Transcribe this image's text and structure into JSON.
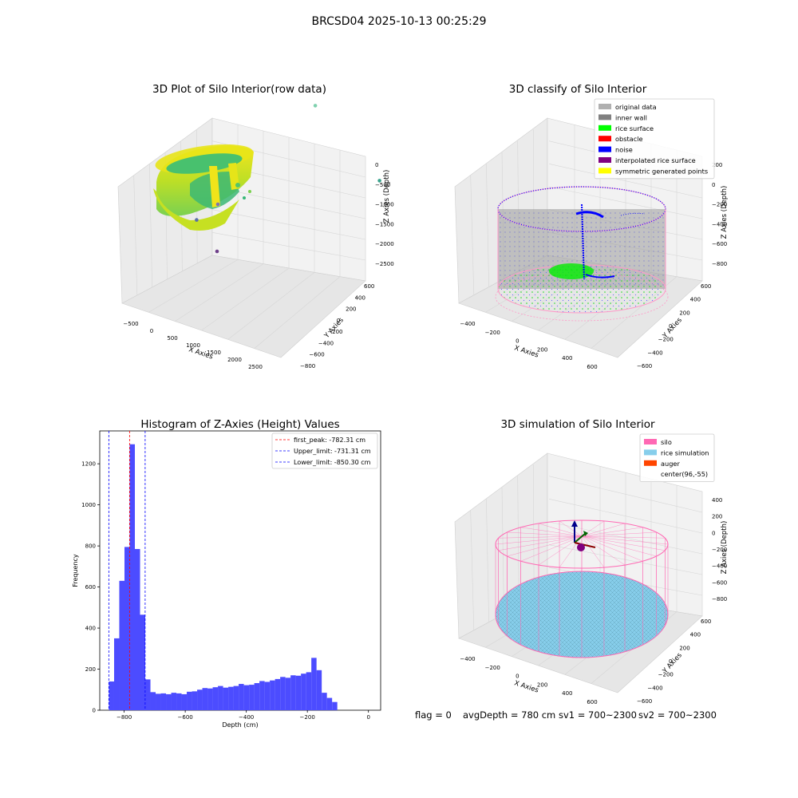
{
  "figure": {
    "suptitle": "BRCSD04 2025-10-13 00:25:29",
    "footer": {
      "flag": "flag = 0",
      "avg_depth": "avgDepth = 780 cm",
      "sv1": "sv1 = 700~2300",
      "sv2": "sv2 = 700~2300"
    }
  },
  "colors": {
    "hist_bar": "#4c4cff",
    "peak_line": "#ff0000",
    "limit_line": "#0000ff",
    "pane": "#f2f2f2",
    "grid": "#d8d8d8",
    "silo": "#ff69b4",
    "rice_sim": "#87ceeb",
    "auger": "#ff4500",
    "original_data": "#b0b0b0",
    "inner_wall": "#808080",
    "rice_surface": "#00ff00",
    "obstacle": "#ff0000",
    "noise": "#0000ff",
    "interpolated": "#800080",
    "symmetric": "#ffff00"
  },
  "chart_data": [
    {
      "type": "scatter",
      "panel": "top-left",
      "title": "3D Plot of Silo Interior(row data)",
      "xlabel": "X Axies",
      "ylabel": "Y Axies",
      "zlabel": "Z Axies (Depth)",
      "x_ticks": [
        "−500",
        "0",
        "500",
        "1000",
        "1500",
        "2000",
        "2500"
      ],
      "y_ticks": [
        "−800",
        "−600",
        "−400",
        "−200",
        "0",
        "200",
        "400",
        "600"
      ],
      "z_ticks": [
        "0",
        "−500",
        "−1000",
        "−1500",
        "−2000",
        "−2500"
      ],
      "colormap": "viridis",
      "outliers": [
        {
          "x": 1600,
          "y": 300,
          "z": -500,
          "color": "#7fd1ae"
        },
        {
          "x": 2600,
          "y": 600,
          "z": -2000,
          "color": "#3aa38d"
        },
        {
          "x": 400,
          "y": -400,
          "z": -2300,
          "color": "#7e74b3"
        },
        {
          "x": 200,
          "y": -600,
          "z": -2500,
          "color": "#5a6fa8"
        },
        {
          "x": 900,
          "y": -800,
          "z": -2700,
          "color": "#6e3f8a"
        }
      ]
    },
    {
      "type": "scatter",
      "panel": "top-right",
      "title": "3D classify of Silo Interior",
      "xlabel": "X Axies",
      "ylabel": "Y Axies",
      "zlabel": "Z Axies (Depth)",
      "x_ticks": [
        "−400",
        "−200",
        "0",
        "200",
        "400",
        "600"
      ],
      "y_ticks": [
        "−600",
        "−400",
        "−200",
        "0",
        "200",
        "400",
        "600"
      ],
      "z_ticks": [
        "200",
        "0",
        "−200",
        "−400",
        "−600",
        "−800"
      ],
      "legend_position": "top-right",
      "legend": [
        {
          "label": "original data",
          "color": "#b0b0b0"
        },
        {
          "label": "inner wall",
          "color": "#808080"
        },
        {
          "label": "rice surface",
          "color": "#00ff00"
        },
        {
          "label": "obstacle",
          "color": "#ff0000"
        },
        {
          "label": "noise",
          "color": "#0000ff"
        },
        {
          "label": "interpolated rice surface",
          "color": "#800080"
        },
        {
          "label": "symmetric generated points",
          "color": "#ffff00"
        }
      ]
    },
    {
      "type": "bar",
      "panel": "bottom-left",
      "title": "Histogram of Z-Axies (Height) Values",
      "xlabel": "Depth (cm)",
      "ylabel": "Frequency",
      "xlim": [
        -880,
        40
      ],
      "ylim": [
        0,
        1360
      ],
      "x_ticks": [
        -800,
        -600,
        -400,
        -200,
        0
      ],
      "y_ticks": [
        0,
        200,
        400,
        600,
        800,
        1000,
        1200
      ],
      "bin_start": -850,
      "bin_width": 17,
      "values": [
        140,
        350,
        630,
        795,
        1295,
        785,
        465,
        150,
        88,
        80,
        82,
        78,
        85,
        82,
        78,
        90,
        92,
        100,
        108,
        106,
        112,
        118,
        110,
        114,
        118,
        128,
        122,
        124,
        132,
        142,
        138,
        145,
        152,
        162,
        158,
        170,
        168,
        178,
        185,
        255,
        195,
        85,
        60,
        40
      ],
      "lines": [
        {
          "label": "first_peak: -782.31 cm",
          "x": -782.31,
          "color": "#ff0000"
        },
        {
          "label": "Upper_limit: -731.31 cm",
          "x": -731.31,
          "color": "#0000ff"
        },
        {
          "label": "Lower_limit: -850.30 cm",
          "x": -850.3,
          "color": "#0000ff"
        }
      ],
      "legend_position": "top-right"
    },
    {
      "type": "scatter",
      "panel": "bottom-right",
      "title": "3D simulation of Silo Interior",
      "xlabel": "X Axies",
      "ylabel": "Y Axies",
      "zlabel": "Z Axies (Depth)",
      "x_ticks": [
        "−400",
        "−200",
        "0",
        "200",
        "400",
        "600"
      ],
      "y_ticks": [
        "−600",
        "−400",
        "−200",
        "0",
        "200",
        "400",
        "600"
      ],
      "z_ticks": [
        "400",
        "200",
        "0",
        "−200",
        "−400",
        "−600",
        "−800"
      ],
      "legend_position": "top-right",
      "legend": [
        {
          "label": "silo",
          "color": "#ff69b4"
        },
        {
          "label": "rice simulation",
          "color": "#87ceeb"
        },
        {
          "label": "auger",
          "color": "#ff4500"
        },
        {
          "label": "center(96,-55)",
          "color": ""
        }
      ]
    }
  ]
}
